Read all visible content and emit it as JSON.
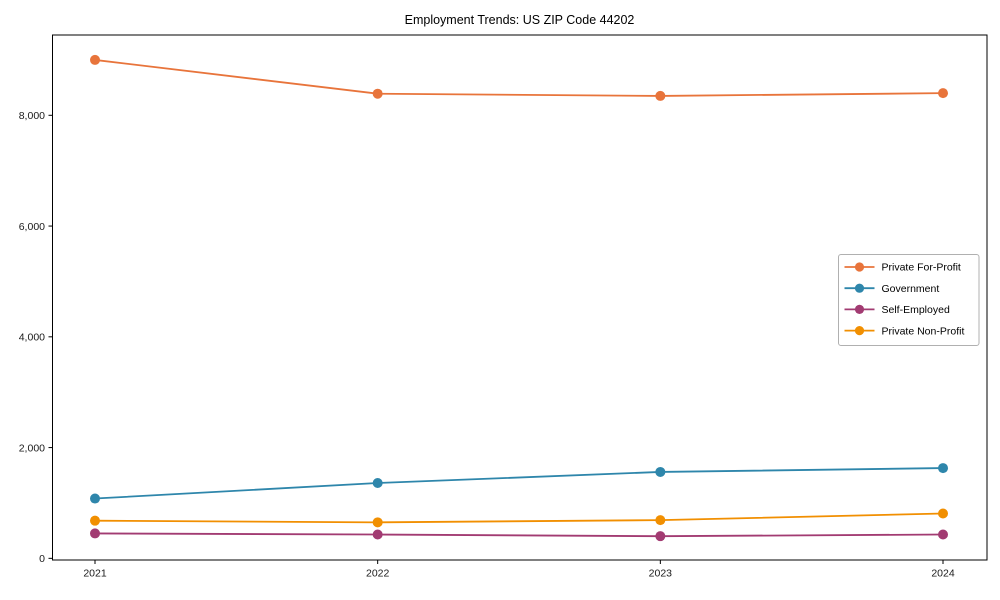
{
  "chart_data": {
    "type": "line",
    "title": "Employment Trends: US ZIP Code 44202",
    "x": [
      2021,
      2022,
      2023,
      2024
    ],
    "xtick_labels": [
      "2021",
      "2022",
      "2023",
      "2024"
    ],
    "series": [
      {
        "name": "Private For-Profit",
        "color": "#e8743b",
        "values": [
          9000,
          8390,
          8350,
          8400
        ]
      },
      {
        "name": "Government",
        "color": "#2e86ab",
        "values": [
          1080,
          1360,
          1560,
          1630
        ]
      },
      {
        "name": "Self-Employed",
        "color": "#a23b72",
        "values": [
          450,
          430,
          400,
          430
        ]
      },
      {
        "name": "Private Non-Profit",
        "color": "#f18f01",
        "values": [
          680,
          650,
          690,
          810
        ]
      }
    ],
    "yticks": [
      0,
      2000,
      4000,
      6000,
      8000
    ],
    "ytick_labels": [
      "0",
      "2,000",
      "4,000",
      "6,000",
      "8,000"
    ],
    "ylim": [
      -30,
      9450
    ],
    "xlabel": "",
    "ylabel": "",
    "grid": false,
    "legend_position": "center-right",
    "marker": "circle",
    "colors": {
      "text": "#1a1a1a",
      "spine": "#000000",
      "legend_border": "#b0b0b0",
      "background": "#ffffff"
    }
  }
}
